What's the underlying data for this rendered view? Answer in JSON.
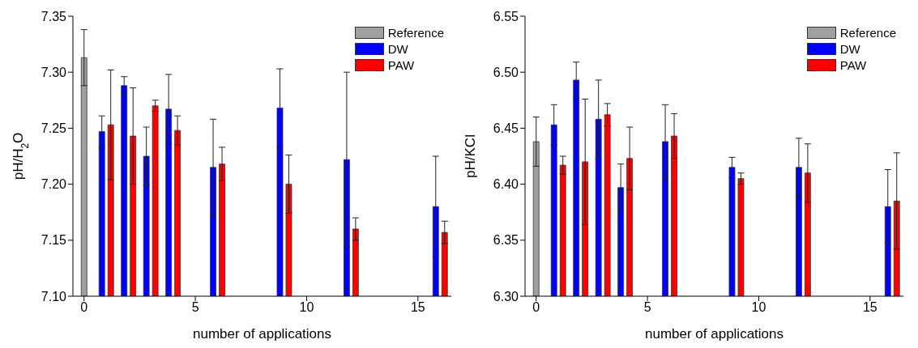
{
  "chart_data": [
    {
      "type": "bar",
      "xlabel": "number of applications",
      "ylabel": "pH/H$_{2}$O",
      "xlim": [
        -0.5,
        16.5
      ],
      "xticks": [
        0,
        5,
        10,
        15
      ],
      "ylim": [
        7.1,
        7.35
      ],
      "yticks": [
        {
          "value": 7.1,
          "label": "7.10"
        },
        7.15,
        {
          "value": 7.2,
          "label": "7.20"
        },
        7.25,
        {
          "value": 7.3,
          "label": "7.30"
        },
        7.35
      ],
      "legend": "top right",
      "series": [
        {
          "name": "Reference",
          "color": "#a0a0a0",
          "x": [
            0
          ],
          "values": [
            7.313
          ],
          "errors": [
            0.025
          ]
        },
        {
          "name": "DW",
          "color": "#0000ff",
          "x": [
            0.8,
            1.8,
            2.8,
            3.8,
            5.8,
            8.8,
            11.8,
            15.8
          ],
          "values": [
            7.247,
            7.288,
            7.225,
            7.267,
            7.215,
            7.268,
            7.222,
            7.18
          ],
          "errors": [
            0.014,
            0.008,
            0.026,
            0.031,
            0.043,
            0.035,
            0.078,
            0.045
          ]
        },
        {
          "name": "PAW",
          "color": "#ff0000",
          "x": [
            1.2,
            2.2,
            3.2,
            4.2,
            6.2,
            9.2,
            12.2,
            16.2
          ],
          "values": [
            7.253,
            7.243,
            7.27,
            7.248,
            7.218,
            7.2,
            7.16,
            7.157
          ],
          "errors": [
            0.049,
            0.043,
            0.005,
            0.013,
            0.015,
            0.026,
            0.01,
            0.01
          ]
        }
      ]
    },
    {
      "type": "bar",
      "xlabel": "number of applications",
      "ylabel": "pH/KCl",
      "xlim": [
        -0.5,
        16.5
      ],
      "xticks": [
        0,
        5,
        10,
        15
      ],
      "ylim": [
        6.3,
        6.55
      ],
      "yticks": [
        {
          "value": 6.3,
          "label": "6.30"
        },
        6.35,
        {
          "value": 6.4,
          "label": "6.40"
        },
        6.45,
        {
          "value": 6.5,
          "label": "6.50"
        },
        6.55
      ],
      "legend": "top right",
      "series": [
        {
          "name": "Reference",
          "color": "#a0a0a0",
          "x": [
            0
          ],
          "values": [
            6.438
          ],
          "errors": [
            0.022
          ]
        },
        {
          "name": "DW",
          "color": "#0000ff",
          "x": [
            0.8,
            1.8,
            2.8,
            3.8,
            5.8,
            8.8,
            11.8,
            15.8
          ],
          "values": [
            6.453,
            6.493,
            6.458,
            6.397,
            6.438,
            6.415,
            6.415,
            6.38
          ],
          "errors": [
            0.018,
            0.016,
            0.035,
            0.021,
            0.033,
            0.009,
            0.026,
            0.033
          ]
        },
        {
          "name": "PAW",
          "color": "#ff0000",
          "x": [
            1.2,
            2.2,
            3.2,
            4.2,
            6.2,
            9.2,
            12.2,
            16.2
          ],
          "values": [
            6.417,
            6.42,
            6.462,
            6.423,
            6.443,
            6.405,
            6.41,
            6.385
          ],
          "errors": [
            0.008,
            0.056,
            0.01,
            0.028,
            0.02,
            0.005,
            0.026,
            0.043
          ]
        }
      ]
    }
  ]
}
